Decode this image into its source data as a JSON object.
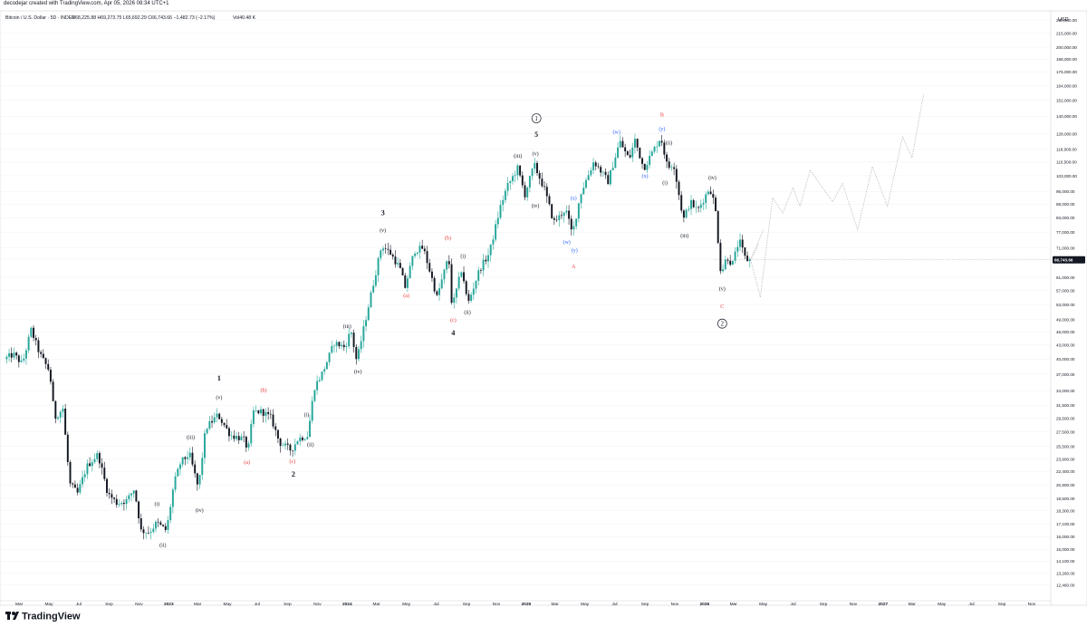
{
  "header": {
    "credit": "decodejar created with TradingView.com, Apr 05, 2026 08:34 UTC+1",
    "symbol": "Bitcoin / U.S. Dollar · 5D · INDEX",
    "ohlc": "O68,225.88  H69,273.75  L65,692.29  C66,743.66  −1,482.73 (−2.17%)",
    "volume": "Vol40.48 K"
  },
  "footer": {
    "brand": "TradingView"
  },
  "colors": {
    "up": "#26a69a",
    "down": "#131722",
    "red": "#e53935",
    "blue": "#2962ff",
    "grid": "#eef0f3",
    "projection": "#b2b5be",
    "price_tag": "#131722"
  },
  "chart_data": {
    "type": "candlestick",
    "interval": "5D",
    "log_scale": true,
    "currency_label": "USD",
    "last_price": "66,743.66",
    "y_ticks": [
      "230,000.00",
      "215,000.00",
      "200,000.00",
      "188,000.00",
      "176,000.00",
      "164,000.00",
      "152,000.00",
      "140,000.00",
      "128,000.00",
      "118,000.00",
      "110,500.00",
      "103,000.00",
      "95,000.00",
      "89,000.00",
      "83,000.00",
      "77,000.00",
      "71,000.00",
      "67,000.00",
      "61,000.00",
      "57,000.00",
      "53,000.00",
      "49,000.00",
      "46,000.00",
      "43,000.00",
      "40,000.00",
      "37,000.00",
      "34,000.00",
      "31,500.00",
      "29,500.00",
      "27,500.00",
      "25,500.00",
      "23,900.00",
      "22,400.00",
      "20,900.00",
      "19,500.00",
      "18,300.00",
      "17,100.00",
      "16,000.00",
      "15,000.00",
      "14,100.00",
      "13,260.00",
      "12,460.00"
    ],
    "x_ticks": [
      {
        "date": "2022-03-01",
        "label": "Mar"
      },
      {
        "date": "2022-05-01",
        "label": "May"
      },
      {
        "date": "2022-07-01",
        "label": "Jul"
      },
      {
        "date": "2022-09-01",
        "label": "Sep"
      },
      {
        "date": "2022-11-01",
        "label": "Nov"
      },
      {
        "date": "2023-01-01",
        "label": "2023"
      },
      {
        "date": "2023-03-01",
        "label": "Mar"
      },
      {
        "date": "2023-05-01",
        "label": "May"
      },
      {
        "date": "2023-07-01",
        "label": "Jul"
      },
      {
        "date": "2023-09-01",
        "label": "Sep"
      },
      {
        "date": "2023-11-01",
        "label": "Nov"
      },
      {
        "date": "2024-01-01",
        "label": "2024"
      },
      {
        "date": "2024-03-01",
        "label": "Mar"
      },
      {
        "date": "2024-05-01",
        "label": "May"
      },
      {
        "date": "2024-07-01",
        "label": "Jul"
      },
      {
        "date": "2024-09-01",
        "label": "Sep"
      },
      {
        "date": "2024-11-01",
        "label": "Nov"
      },
      {
        "date": "2025-01-01",
        "label": "2025"
      },
      {
        "date": "2025-03-01",
        "label": "Mar"
      },
      {
        "date": "2025-05-01",
        "label": "May"
      },
      {
        "date": "2025-07-01",
        "label": "Jul"
      },
      {
        "date": "2025-09-01",
        "label": "Sep"
      },
      {
        "date": "2025-11-01",
        "label": "Nov"
      },
      {
        "date": "2026-01-01",
        "label": "2026"
      },
      {
        "date": "2026-03-01",
        "label": "Mar"
      },
      {
        "date": "2026-05-01",
        "label": "May"
      },
      {
        "date": "2026-07-01",
        "label": "Jul"
      },
      {
        "date": "2026-09-01",
        "label": "Sep"
      },
      {
        "date": "2026-11-01",
        "label": "Nov"
      },
      {
        "date": "2027-01-01",
        "label": "2027"
      },
      {
        "date": "2027-03-01",
        "label": "Mar"
      },
      {
        "date": "2027-05-01",
        "label": "May"
      },
      {
        "date": "2027-07-01",
        "label": "Jul"
      },
      {
        "date": "2027-09-01",
        "label": "Sep"
      },
      {
        "date": "2027-11-01",
        "label": "Nov"
      }
    ],
    "price_path": [
      [
        "2022-02-01",
        40000
      ],
      [
        "2022-02-20",
        41000
      ],
      [
        "2022-03-10",
        39000
      ],
      [
        "2022-03-28",
        46500
      ],
      [
        "2022-04-15",
        41000
      ],
      [
        "2022-05-05",
        37500
      ],
      [
        "2022-05-15",
        29500
      ],
      [
        "2022-06-01",
        31000
      ],
      [
        "2022-06-15",
        21000
      ],
      [
        "2022-07-01",
        20000
      ],
      [
        "2022-07-20",
        23000
      ],
      [
        "2022-08-12",
        24500
      ],
      [
        "2022-09-01",
        20000
      ],
      [
        "2022-09-20",
        19000
      ],
      [
        "2022-10-10",
        19300
      ],
      [
        "2022-10-25",
        20500
      ],
      [
        "2022-11-08",
        16500
      ],
      [
        "2022-11-25",
        16400
      ],
      [
        "2022-12-10",
        17200
      ],
      [
        "2022-12-30",
        16500
      ],
      [
        "2023-01-14",
        21000
      ],
      [
        "2023-01-28",
        23500
      ],
      [
        "2023-02-15",
        24500
      ],
      [
        "2023-03-05",
        20500
      ],
      [
        "2023-03-20",
        28000
      ],
      [
        "2023-04-14",
        30000
      ],
      [
        "2023-05-10",
        27000
      ],
      [
        "2023-06-05",
        26500
      ],
      [
        "2023-06-15",
        25000
      ],
      [
        "2023-06-25",
        30500
      ],
      [
        "2023-07-14",
        30500
      ],
      [
        "2023-08-01",
        29500
      ],
      [
        "2023-08-18",
        26000
      ],
      [
        "2023-09-11",
        25000
      ],
      [
        "2023-09-25",
        26500
      ],
      [
        "2023-10-15",
        27000
      ],
      [
        "2023-10-28",
        34500
      ],
      [
        "2023-11-15",
        37500
      ],
      [
        "2023-12-08",
        43500
      ],
      [
        "2023-12-30",
        42500
      ],
      [
        "2024-01-11",
        46500
      ],
      [
        "2024-01-23",
        39500
      ],
      [
        "2024-02-15",
        52000
      ],
      [
        "2024-03-01",
        62000
      ],
      [
        "2024-03-14",
        72000
      ],
      [
        "2024-04-01",
        69000
      ],
      [
        "2024-04-20",
        64000
      ],
      [
        "2024-05-01",
        58000
      ],
      [
        "2024-05-20",
        70000
      ],
      [
        "2024-06-07",
        71000
      ],
      [
        "2024-06-25",
        60500
      ],
      [
        "2024-07-05",
        55000
      ],
      [
        "2024-07-29",
        68000
      ],
      [
        "2024-08-05",
        52000
      ],
      [
        "2024-08-25",
        64000
      ],
      [
        "2024-09-06",
        53000
      ],
      [
        "2024-09-30",
        63500
      ],
      [
        "2024-10-20",
        69000
      ],
      [
        "2024-11-12",
        88000
      ],
      [
        "2024-11-25",
        97000
      ],
      [
        "2024-12-17",
        107000
      ],
      [
        "2025-01-01",
        93500
      ],
      [
        "2025-01-20",
        109000
      ],
      [
        "2025-02-10",
        96000
      ],
      [
        "2025-03-01",
        81000
      ],
      [
        "2025-03-15",
        84000
      ],
      [
        "2025-03-25",
        87000
      ],
      [
        "2025-04-08",
        76000
      ],
      [
        "2025-04-25",
        94000
      ],
      [
        "2025-05-22",
        111000
      ],
      [
        "2025-06-20",
        100000
      ],
      [
        "2025-07-14",
        123000
      ],
      [
        "2025-08-02",
        112000
      ],
      [
        "2025-08-14",
        124000
      ],
      [
        "2025-09-01",
        107000
      ],
      [
        "2025-09-20",
        117000
      ],
      [
        "2025-10-06",
        126000
      ],
      [
        "2025-10-20",
        107000
      ],
      [
        "2025-11-01",
        110000
      ],
      [
        "2025-11-21",
        82000
      ],
      [
        "2025-12-05",
        90000
      ],
      [
        "2025-12-20",
        86000
      ],
      [
        "2026-01-14",
        97000
      ],
      [
        "2026-01-25",
        88000
      ],
      [
        "2026-02-06",
        62000
      ],
      [
        "2026-02-18",
        68000
      ],
      [
        "2026-03-01",
        65000
      ],
      [
        "2026-03-15",
        74000
      ],
      [
        "2026-03-28",
        67000
      ],
      [
        "2026-04-05",
        66743
      ]
    ],
    "projections": [
      {
        "points": [
          [
            "2026-04-05",
            66743
          ],
          [
            "2026-04-25",
            55000
          ],
          [
            "2026-05-20",
            92000
          ],
          [
            "2026-06-10",
            85000
          ],
          [
            "2026-07-01",
            97000
          ],
          [
            "2026-07-15",
            88000
          ],
          [
            "2026-08-05",
            106000
          ]
        ]
      },
      {
        "points": [
          [
            "2026-04-05",
            66743
          ],
          [
            "2026-04-22",
            72500
          ]
        ]
      },
      {
        "points": [
          [
            "2026-04-05",
            66743
          ],
          [
            "2026-05-01",
            78000
          ]
        ]
      },
      {
        "points": [
          [
            "2026-08-05",
            106000
          ],
          [
            "2026-09-20",
            90000
          ],
          [
            "2026-10-10",
            99000
          ],
          [
            "2026-11-10",
            78000
          ],
          [
            "2026-12-10",
            108000
          ],
          [
            "2027-01-10",
            88000
          ],
          [
            "2027-02-10",
            126000
          ],
          [
            "2027-03-01",
            113000
          ],
          [
            "2027-03-25",
            157000
          ]
        ]
      }
    ],
    "annotations": [
      {
        "text": "1",
        "date": "2023-04-14",
        "price": 35800,
        "color": "black",
        "bold": true
      },
      {
        "text": "(v)",
        "date": "2023-04-14",
        "price": 32500,
        "color": "black"
      },
      {
        "text": "(iii)",
        "date": "2023-02-15",
        "price": 26500,
        "color": "black"
      },
      {
        "text": "(iv)",
        "date": "2023-03-05",
        "price": 18200,
        "color": "black"
      },
      {
        "text": "(i)",
        "date": "2022-12-08",
        "price": 18800,
        "color": "black"
      },
      {
        "text": "(ii)",
        "date": "2022-12-20",
        "price": 15200,
        "color": "black"
      },
      {
        "text": "(b)",
        "date": "2023-07-14",
        "price": 33800,
        "color": "red"
      },
      {
        "text": "(a)",
        "date": "2023-06-10",
        "price": 23300,
        "color": "red"
      },
      {
        "text": "(c)",
        "date": "2023-09-11",
        "price": 23400,
        "color": "red"
      },
      {
        "text": "2",
        "date": "2023-09-13",
        "price": 21800,
        "color": "black",
        "bold": true
      },
      {
        "text": "(i)",
        "date": "2023-10-10",
        "price": 29800,
        "color": "black"
      },
      {
        "text": "(ii)",
        "date": "2023-10-18",
        "price": 25500,
        "color": "black"
      },
      {
        "text": "(iii)",
        "date": "2024-01-01",
        "price": 47000,
        "color": "black"
      },
      {
        "text": "(iv)",
        "date": "2024-01-23",
        "price": 37200,
        "color": "black"
      },
      {
        "text": "3",
        "date": "2024-03-14",
        "price": 84000,
        "color": "black",
        "bold": true
      },
      {
        "text": "(v)",
        "date": "2024-03-14",
        "price": 77000,
        "color": "black"
      },
      {
        "text": "(a)",
        "date": "2024-05-01",
        "price": 55000,
        "color": "red"
      },
      {
        "text": "(b)",
        "date": "2024-07-25",
        "price": 74000,
        "color": "red"
      },
      {
        "text": "(c)",
        "date": "2024-08-05",
        "price": 48500,
        "color": "red"
      },
      {
        "text": "4",
        "date": "2024-08-05",
        "price": 45200,
        "color": "black",
        "bold": true
      },
      {
        "text": "(i)",
        "date": "2024-08-25",
        "price": 67500,
        "color": "black"
      },
      {
        "text": "(ii)",
        "date": "2024-09-03",
        "price": 50500,
        "color": "black"
      },
      {
        "text": "(iii)",
        "date": "2024-12-15",
        "price": 113000,
        "color": "black"
      },
      {
        "text": "(iv)",
        "date": "2025-01-20",
        "price": 87500,
        "color": "black"
      },
      {
        "text": "(v)",
        "date": "2025-01-20",
        "price": 114500,
        "color": "black"
      },
      {
        "text": "5",
        "date": "2025-01-22",
        "price": 126000,
        "color": "black",
        "bold": true
      },
      {
        "text": "1",
        "date": "2025-01-22",
        "price": 137000,
        "color": "black",
        "circled": true
      },
      {
        "text": "(w)",
        "date": "2025-03-25",
        "price": 72500,
        "color": "blue"
      },
      {
        "text": "(x)",
        "date": "2025-04-08",
        "price": 91000,
        "color": "blue"
      },
      {
        "text": "(y)",
        "date": "2025-04-10",
        "price": 69500,
        "color": "blue"
      },
      {
        "text": "A",
        "date": "2025-04-08",
        "price": 64000,
        "color": "red"
      },
      {
        "text": "(w)",
        "date": "2025-07-05",
        "price": 128000,
        "color": "blue"
      },
      {
        "text": "(x)",
        "date": "2025-09-01",
        "price": 102000,
        "color": "blue"
      },
      {
        "text": "(y)",
        "date": "2025-10-06",
        "price": 130000,
        "color": "blue"
      },
      {
        "text": "B",
        "date": "2025-10-06",
        "price": 140000,
        "color": "red"
      },
      {
        "text": "(ii)",
        "date": "2025-10-20",
        "price": 121000,
        "color": "black"
      },
      {
        "text": "(i)",
        "date": "2025-10-12",
        "price": 98500,
        "color": "black"
      },
      {
        "text": "(iv)",
        "date": "2026-01-17",
        "price": 101000,
        "color": "black"
      },
      {
        "text": "(iii)",
        "date": "2025-11-21",
        "price": 75000,
        "color": "black"
      },
      {
        "text": "(v)",
        "date": "2026-02-06",
        "price": 57000,
        "color": "black"
      },
      {
        "text": "C",
        "date": "2026-02-06",
        "price": 52000,
        "color": "red"
      },
      {
        "text": "2",
        "date": "2026-02-06",
        "price": 47500,
        "color": "black",
        "circled": true
      }
    ]
  }
}
